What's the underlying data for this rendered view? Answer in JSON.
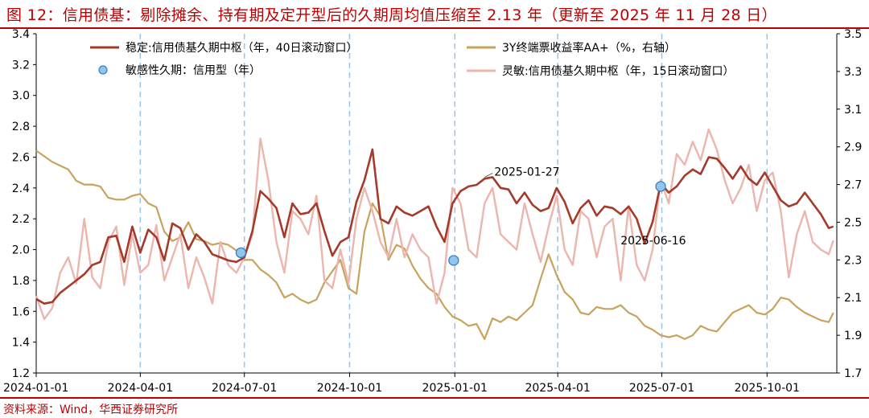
{
  "title": "图 12：信用债基：剔除摊余、持有期及定开型后的久期周均值压缩至 2.13 年（更新至 2025 年 11 月 28 日）",
  "source": "资料来源：Wind，华西证券研究所",
  "colors": {
    "stable": "#a63a2a",
    "sensitive": "#ebb6ae",
    "yield": "#c8a35e",
    "dots_fill": "#8ec6ee",
    "dots_stroke": "#3a7fbf",
    "vline": "#9dc3e6",
    "accent": "#c00000"
  },
  "chart_data": {
    "type": "line",
    "title": "",
    "x_range": [
      "2024-01-01",
      "2025-12-01"
    ],
    "x_ticks": [
      "2024-01-01",
      "2024-04-01",
      "2024-07-01",
      "2024-10-01",
      "2025-01-01",
      "2025-04-01",
      "2025-07-01",
      "2025-10-01"
    ],
    "y_left": {
      "min": 1.2,
      "max": 3.4,
      "ticks": [
        "1.2",
        "1.4",
        "1.6",
        "1.8",
        "2.0",
        "2.2",
        "2.4",
        "2.6",
        "2.8",
        "3.0",
        "3.2",
        "3.4"
      ]
    },
    "y_right": {
      "min": 1.7,
      "max": 3.5,
      "ticks": [
        "1.7",
        "1.9",
        "2.1",
        "2.3",
        "2.5",
        "2.7",
        "2.9",
        "3.1",
        "3.3",
        "3.5"
      ]
    },
    "grid": false,
    "quarter_markers": [
      "2024-04-01",
      "2024-07-01",
      "2024-10-01",
      "2025-01-01",
      "2025-04-01",
      "2025-07-01",
      "2025-10-01"
    ],
    "legend": {
      "stable": "稳定:信用债基久期中枢（年，40日滚动窗口）",
      "yield": "3Y终端票收益率AA+（%，右轴）",
      "dots": "敏感性久期：信用型（年）",
      "sensitive": "灵敏:信用债基久期中枢（年，15日滚动窗口）"
    },
    "annotations": [
      {
        "text": "2025-01-27",
        "x": "2025-01-27",
        "y": 2.47
      },
      {
        "text": "2025-06-16",
        "x": "2025-06-16",
        "y": 2.04
      }
    ],
    "dots": [
      {
        "x": "2024-06-28",
        "y": 1.98
      },
      {
        "x": "2024-12-31",
        "y": 1.93
      },
      {
        "x": "2025-06-30",
        "y": 2.41
      }
    ],
    "series": [
      {
        "key": "stable",
        "axis": "left",
        "name": "稳定:信用债基久期中枢（年，40日滚动窗口）",
        "x": [
          "2024-01-01",
          "2024-01-08",
          "2024-01-15",
          "2024-01-22",
          "2024-01-29",
          "2024-02-05",
          "2024-02-12",
          "2024-02-19",
          "2024-02-26",
          "2024-03-04",
          "2024-03-11",
          "2024-03-18",
          "2024-03-25",
          "2024-04-01",
          "2024-04-08",
          "2024-04-15",
          "2024-04-22",
          "2024-04-29",
          "2024-05-06",
          "2024-05-13",
          "2024-05-20",
          "2024-05-27",
          "2024-06-03",
          "2024-06-10",
          "2024-06-17",
          "2024-06-24",
          "2024-07-01",
          "2024-07-08",
          "2024-07-15",
          "2024-07-22",
          "2024-07-29",
          "2024-08-05",
          "2024-08-12",
          "2024-08-19",
          "2024-08-26",
          "2024-09-02",
          "2024-09-09",
          "2024-09-16",
          "2024-09-23",
          "2024-09-30",
          "2024-10-07",
          "2024-10-14",
          "2024-10-21",
          "2024-10-28",
          "2024-11-04",
          "2024-11-11",
          "2024-11-18",
          "2024-11-25",
          "2024-12-02",
          "2024-12-09",
          "2024-12-16",
          "2024-12-23",
          "2024-12-30",
          "2025-01-06",
          "2025-01-13",
          "2025-01-20",
          "2025-01-27",
          "2025-02-03",
          "2025-02-10",
          "2025-02-17",
          "2025-02-24",
          "2025-03-03",
          "2025-03-10",
          "2025-03-17",
          "2025-03-24",
          "2025-03-31",
          "2025-04-07",
          "2025-04-14",
          "2025-04-21",
          "2025-04-28",
          "2025-05-05",
          "2025-05-12",
          "2025-05-19",
          "2025-05-26",
          "2025-06-02",
          "2025-06-09",
          "2025-06-16",
          "2025-06-23",
          "2025-06-30",
          "2025-07-07",
          "2025-07-14",
          "2025-07-21",
          "2025-07-28",
          "2025-08-04",
          "2025-08-11",
          "2025-08-18",
          "2025-08-25",
          "2025-09-01",
          "2025-09-08",
          "2025-09-15",
          "2025-09-22",
          "2025-09-29",
          "2025-10-06",
          "2025-10-13",
          "2025-10-20",
          "2025-10-27",
          "2025-11-03",
          "2025-11-10",
          "2025-11-17",
          "2025-11-24",
          "2025-11-28"
        ],
        "values": [
          1.68,
          1.65,
          1.66,
          1.72,
          1.76,
          1.8,
          1.84,
          1.9,
          1.92,
          2.08,
          2.09,
          1.92,
          2.15,
          1.98,
          2.13,
          2.08,
          1.93,
          2.17,
          2.14,
          2.0,
          2.1,
          2.05,
          1.97,
          1.95,
          1.93,
          1.92,
          1.95,
          2.12,
          2.38,
          2.33,
          2.27,
          2.08,
          2.3,
          2.23,
          2.24,
          2.3,
          2.12,
          1.96,
          2.05,
          2.08,
          2.31,
          2.45,
          2.65,
          2.2,
          2.17,
          2.28,
          2.24,
          2.22,
          2.25,
          2.28,
          2.15,
          2.05,
          2.3,
          2.38,
          2.41,
          2.42,
          2.46,
          2.47,
          2.4,
          2.39,
          2.3,
          2.37,
          2.29,
          2.25,
          2.27,
          2.4,
          2.31,
          2.17,
          2.27,
          2.32,
          2.22,
          2.28,
          2.27,
          2.23,
          2.28,
          2.2,
          2.04,
          2.18,
          2.43,
          2.37,
          2.41,
          2.48,
          2.52,
          2.49,
          2.6,
          2.59,
          2.53,
          2.46,
          2.54,
          2.46,
          2.42,
          2.5,
          2.41,
          2.32,
          2.28,
          2.3,
          2.37,
          2.3,
          2.23,
          2.14,
          2.15
        ]
      },
      {
        "key": "sensitive",
        "axis": "left",
        "name": "灵敏:信用债基久期中枢（年，15日滚动窗口）",
        "x": [
          "2024-01-01",
          "2024-01-08",
          "2024-01-15",
          "2024-01-22",
          "2024-01-29",
          "2024-02-05",
          "2024-02-12",
          "2024-02-19",
          "2024-02-26",
          "2024-03-04",
          "2024-03-11",
          "2024-03-18",
          "2024-03-25",
          "2024-04-01",
          "2024-04-08",
          "2024-04-15",
          "2024-04-22",
          "2024-04-29",
          "2024-05-06",
          "2024-05-13",
          "2024-05-20",
          "2024-05-27",
          "2024-06-03",
          "2024-06-10",
          "2024-06-17",
          "2024-06-24",
          "2024-07-01",
          "2024-07-08",
          "2024-07-15",
          "2024-07-22",
          "2024-07-29",
          "2024-08-05",
          "2024-08-12",
          "2024-08-19",
          "2024-08-26",
          "2024-09-02",
          "2024-09-09",
          "2024-09-16",
          "2024-09-23",
          "2024-09-30",
          "2024-10-07",
          "2024-10-14",
          "2024-10-21",
          "2024-10-28",
          "2024-11-04",
          "2024-11-11",
          "2024-11-18",
          "2024-11-25",
          "2024-12-02",
          "2024-12-09",
          "2024-12-16",
          "2024-12-23",
          "2024-12-30",
          "2025-01-06",
          "2025-01-13",
          "2025-01-20",
          "2025-01-27",
          "2025-02-03",
          "2025-02-10",
          "2025-02-17",
          "2025-02-24",
          "2025-03-03",
          "2025-03-10",
          "2025-03-17",
          "2025-03-24",
          "2025-03-31",
          "2025-04-07",
          "2025-04-14",
          "2025-04-21",
          "2025-04-28",
          "2025-05-05",
          "2025-05-12",
          "2025-05-19",
          "2025-05-26",
          "2025-06-02",
          "2025-06-09",
          "2025-06-16",
          "2025-06-23",
          "2025-06-30",
          "2025-07-07",
          "2025-07-14",
          "2025-07-21",
          "2025-07-28",
          "2025-08-04",
          "2025-08-11",
          "2025-08-18",
          "2025-08-25",
          "2025-09-01",
          "2025-09-08",
          "2025-09-15",
          "2025-09-22",
          "2025-09-29",
          "2025-10-06",
          "2025-10-13",
          "2025-10-20",
          "2025-10-27",
          "2025-11-03",
          "2025-11-10",
          "2025-11-17",
          "2025-11-24",
          "2025-11-28"
        ],
        "values": [
          1.7,
          1.55,
          1.62,
          1.85,
          1.95,
          1.78,
          2.2,
          1.82,
          1.75,
          2.05,
          2.15,
          1.77,
          2.1,
          1.85,
          1.9,
          2.16,
          1.8,
          1.95,
          2.1,
          1.75,
          1.95,
          1.82,
          1.65,
          2.05,
          1.9,
          1.85,
          1.95,
          2.1,
          2.72,
          2.45,
          2.05,
          1.85,
          2.25,
          2.2,
          2.1,
          2.35,
          1.8,
          1.75,
          2.0,
          1.78,
          2.2,
          2.4,
          2.25,
          2.05,
          1.95,
          2.2,
          1.95,
          2.1,
          2.0,
          1.95,
          1.65,
          1.85,
          2.4,
          2.3,
          2.0,
          1.95,
          2.3,
          2.4,
          2.1,
          2.05,
          2.0,
          2.3,
          2.1,
          1.92,
          2.15,
          2.35,
          2.0,
          1.9,
          2.25,
          2.2,
          1.95,
          2.15,
          2.2,
          1.8,
          2.28,
          1.9,
          1.8,
          2.0,
          2.45,
          2.3,
          2.62,
          2.55,
          2.7,
          2.58,
          2.78,
          2.65,
          2.45,
          2.3,
          2.4,
          2.55,
          2.25,
          2.45,
          2.5,
          2.25,
          1.82,
          2.1,
          2.25,
          2.05,
          2.0,
          1.97,
          2.06
        ]
      },
      {
        "key": "yield",
        "axis": "right",
        "name": "3Y终端票收益率AA+（%，右轴）",
        "x": [
          "2024-01-01",
          "2024-01-08",
          "2024-01-15",
          "2024-01-22",
          "2024-01-29",
          "2024-02-05",
          "2024-02-12",
          "2024-02-19",
          "2024-02-26",
          "2024-03-04",
          "2024-03-11",
          "2024-03-18",
          "2024-03-25",
          "2024-04-01",
          "2024-04-08",
          "2024-04-15",
          "2024-04-22",
          "2024-04-29",
          "2024-05-06",
          "2024-05-13",
          "2024-05-20",
          "2024-05-27",
          "2024-06-03",
          "2024-06-10",
          "2024-06-17",
          "2024-06-24",
          "2024-07-01",
          "2024-07-08",
          "2024-07-15",
          "2024-07-22",
          "2024-07-29",
          "2024-08-05",
          "2024-08-12",
          "2024-08-19",
          "2024-08-26",
          "2024-09-02",
          "2024-09-09",
          "2024-09-16",
          "2024-09-23",
          "2024-09-30",
          "2024-10-07",
          "2024-10-14",
          "2024-10-21",
          "2024-10-28",
          "2024-11-04",
          "2024-11-11",
          "2024-11-18",
          "2024-11-25",
          "2024-12-02",
          "2024-12-09",
          "2024-12-16",
          "2024-12-23",
          "2024-12-30",
          "2025-01-06",
          "2025-01-13",
          "2025-01-20",
          "2025-01-27",
          "2025-02-03",
          "2025-02-10",
          "2025-02-17",
          "2025-02-24",
          "2025-03-03",
          "2025-03-10",
          "2025-03-17",
          "2025-03-24",
          "2025-03-31",
          "2025-04-07",
          "2025-04-14",
          "2025-04-21",
          "2025-04-28",
          "2025-05-05",
          "2025-05-12",
          "2025-05-19",
          "2025-05-26",
          "2025-06-02",
          "2025-06-09",
          "2025-06-16",
          "2025-06-23",
          "2025-06-30",
          "2025-07-07",
          "2025-07-14",
          "2025-07-21",
          "2025-07-28",
          "2025-08-04",
          "2025-08-11",
          "2025-08-18",
          "2025-08-25",
          "2025-09-01",
          "2025-09-08",
          "2025-09-15",
          "2025-09-22",
          "2025-09-29",
          "2025-10-06",
          "2025-10-13",
          "2025-10-20",
          "2025-10-27",
          "2025-11-03",
          "2025-11-10",
          "2025-11-17",
          "2025-11-24",
          "2025-11-28"
        ],
        "values": [
          2.88,
          2.85,
          2.82,
          2.8,
          2.78,
          2.72,
          2.7,
          2.7,
          2.69,
          2.63,
          2.62,
          2.62,
          2.64,
          2.65,
          2.6,
          2.58,
          2.45,
          2.4,
          2.42,
          2.5,
          2.41,
          2.4,
          2.38,
          2.39,
          2.38,
          2.35,
          2.3,
          2.3,
          2.25,
          2.22,
          2.18,
          2.1,
          2.12,
          2.09,
          2.07,
          2.09,
          2.18,
          2.24,
          2.3,
          2.15,
          2.12,
          2.45,
          2.6,
          2.53,
          2.3,
          2.38,
          2.36,
          2.27,
          2.2,
          2.15,
          2.12,
          2.05,
          2.0,
          1.98,
          1.95,
          1.96,
          1.88,
          1.99,
          1.97,
          2.0,
          1.98,
          2.02,
          2.06,
          2.2,
          2.33,
          2.22,
          2.13,
          2.09,
          2.02,
          2.01,
          2.05,
          2.04,
          2.04,
          2.06,
          2.02,
          2.0,
          1.95,
          1.93,
          1.9,
          1.89,
          1.9,
          1.88,
          1.9,
          1.95,
          1.93,
          1.92,
          1.97,
          2.02,
          2.04,
          2.06,
          2.02,
          2.01,
          2.04,
          2.1,
          2.09,
          2.05,
          2.02,
          2.0,
          1.98,
          1.97,
          2.02
        ]
      }
    ]
  }
}
